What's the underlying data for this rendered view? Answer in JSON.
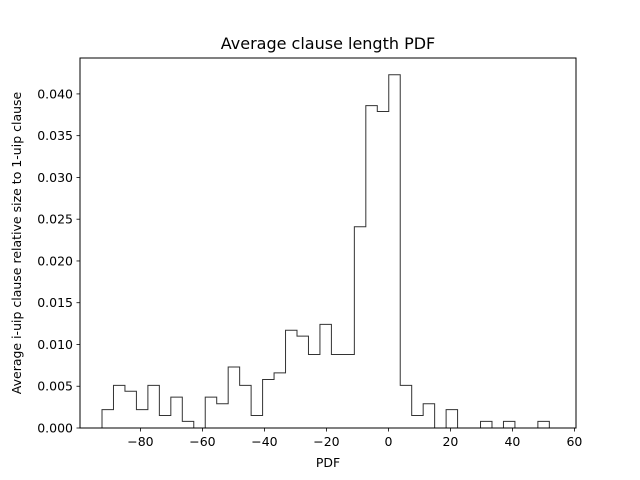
{
  "chart_data": {
    "type": "histogram",
    "title": "Average clause length PDF",
    "xlabel": "PDF",
    "ylabel": "Average i-uip clause relative size to 1-uip clause",
    "xlim": [
      -99.5,
      60.5
    ],
    "ylim": [
      0,
      0.0443
    ],
    "xticks": [
      -80,
      -60,
      -40,
      -20,
      0,
      20,
      40,
      60
    ],
    "xtick_labels": [
      "−80",
      "−60",
      "−40",
      "−20",
      "0",
      "20",
      "40",
      "60"
    ],
    "yticks": [
      0.0,
      0.005,
      0.01,
      0.015,
      0.02,
      0.025,
      0.03,
      0.035,
      0.04
    ],
    "ytick_labels": [
      "0.000",
      "0.005",
      "0.010",
      "0.015",
      "0.020",
      "0.025",
      "0.030",
      "0.035",
      "0.040"
    ],
    "histtype": "step",
    "line_color": "#333333",
    "grid": false,
    "bin_edges": [
      -92.4,
      -88.7,
      -85.0,
      -81.3,
      -77.6,
      -73.9,
      -70.2,
      -66.5,
      -62.8,
      -59.1,
      -55.4,
      -51.7,
      -48.0,
      -44.3,
      -40.6,
      -36.9,
      -33.2,
      -29.5,
      -25.8,
      -22.1,
      -18.4,
      -14.7,
      -11.0,
      -7.3,
      -3.6,
      0.1,
      3.8,
      7.5,
      11.2,
      14.9,
      18.6,
      22.3,
      26.0,
      29.7,
      33.4,
      37.1,
      40.8,
      44.5,
      48.2,
      51.9
    ],
    "counts": [
      0.0022,
      0.0051,
      0.0044,
      0.0022,
      0.0051,
      0.0015,
      0.0037,
      0.0008,
      0.0,
      0.0037,
      0.0029,
      0.0073,
      0.0051,
      0.0015,
      0.0058,
      0.0066,
      0.0117,
      0.011,
      0.0088,
      0.0124,
      0.0088,
      0.0088,
      0.0241,
      0.0386,
      0.0379,
      0.0423,
      0.0051,
      0.0015,
      0.0029,
      0.0,
      0.0022,
      0.0,
      0.0,
      0.0008,
      0.0,
      0.0008,
      0.0,
      0.0,
      0.0008
    ]
  }
}
